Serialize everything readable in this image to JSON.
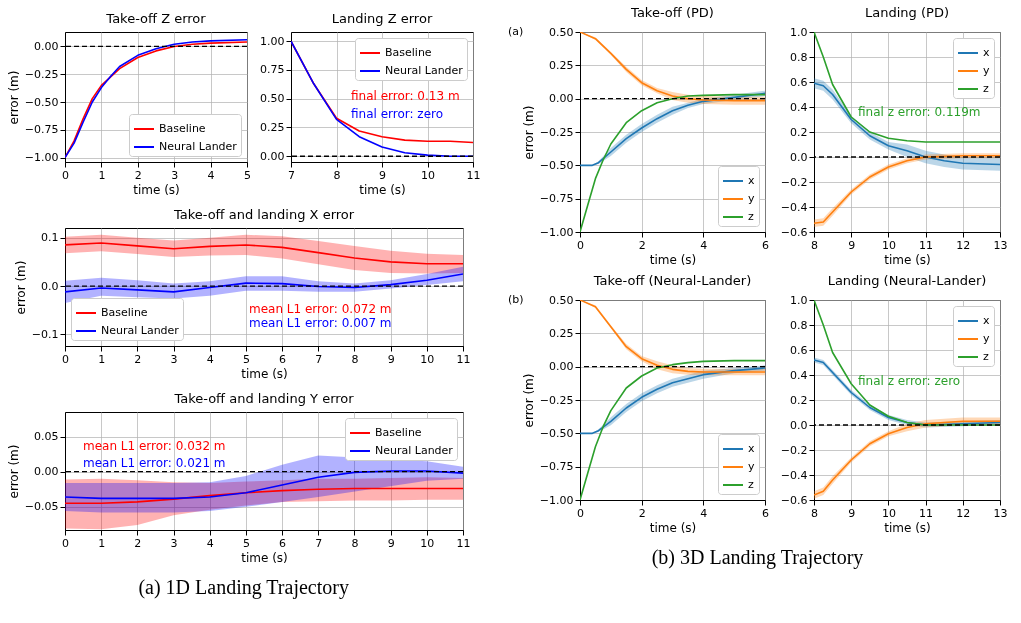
{
  "chart_data": [
    {
      "type": "line",
      "title": "Take-off Z error",
      "xlabel": "time (s)",
      "ylabel": "error (m)",
      "xlim": [
        0,
        5
      ],
      "xticks": [
        0,
        1,
        2,
        3,
        4,
        5
      ],
      "ylim": [
        -1.04,
        0.13
      ],
      "yticks": [
        {
          "value": -1,
          "label": "−1.00"
        },
        {
          "value": -0.75,
          "label": "−0.75"
        },
        {
          "value": -0.5,
          "label": "−0.50"
        },
        {
          "value": -0.25,
          "label": "−0.25"
        },
        {
          "value": 0,
          "label": "0.00"
        }
      ],
      "grid": true,
      "legend": "bottom right",
      "ref_lines": [
        {
          "axis": "y",
          "value": 0,
          "color": "#000000",
          "line_style": "dashed"
        }
      ],
      "series": [
        {
          "name": "Baseline",
          "color": "#ff0000",
          "x": [
            0,
            0.25,
            0.5,
            0.75,
            1,
            1.5,
            2,
            2.5,
            3,
            3.5,
            4,
            5
          ],
          "values": [
            -1,
            -0.85,
            -0.65,
            -0.47,
            -0.35,
            -0.2,
            -0.1,
            -0.04,
            0,
            0.02,
            0.03,
            0.04
          ]
        },
        {
          "name": "Neural Lander",
          "color": "#0000ff",
          "x": [
            0,
            0.25,
            0.5,
            0.75,
            1,
            1.25,
            1.5,
            2,
            2.5,
            3,
            3.5,
            4,
            5
          ],
          "values": [
            -1,
            -0.87,
            -0.68,
            -0.5,
            -0.37,
            -0.27,
            -0.18,
            -0.08,
            -0.02,
            0.02,
            0.04,
            0.05,
            0.06
          ]
        }
      ]
    },
    {
      "type": "line",
      "title": "Landing Z error",
      "xlabel": "time (s)",
      "xlim": [
        7,
        11
      ],
      "xticks": [
        7,
        8,
        9,
        10,
        11
      ],
      "ylim": [
        -0.05,
        1.08
      ],
      "yticks": [
        {
          "value": 0,
          "label": "0.00"
        },
        {
          "value": 0.25,
          "label": "0.25"
        },
        {
          "value": 0.5,
          "label": "0.50"
        },
        {
          "value": 0.75,
          "label": "0.75"
        },
        {
          "value": 1,
          "label": "1.00"
        }
      ],
      "grid": true,
      "legend": "top right",
      "ref_lines": [
        {
          "axis": "y",
          "value": 0,
          "color": "#000000",
          "line_style": "dashed"
        }
      ],
      "annotations": [
        "final error: 0.13 m",
        "final error: zero"
      ],
      "series": [
        {
          "name": "Baseline",
          "color": "#ff0000",
          "x": [
            7,
            7.5,
            8,
            8.5,
            9,
            9.5,
            10,
            10.5,
            11
          ],
          "values": [
            1,
            0.63,
            0.33,
            0.22,
            0.17,
            0.14,
            0.13,
            0.13,
            0.12
          ]
        },
        {
          "name": "Neural Lander",
          "color": "#0000ff",
          "x": [
            7,
            7.5,
            8,
            8.5,
            9,
            9.5,
            10,
            10.5,
            11
          ],
          "values": [
            1,
            0.63,
            0.32,
            0.17,
            0.08,
            0.03,
            0.01,
            0,
            0
          ]
        }
      ]
    },
    {
      "type": "line",
      "title": "Take-off and landing X error",
      "xlabel": "time (s)",
      "ylabel": "error (m)",
      "xlim": [
        0,
        11
      ],
      "xticks": [
        0,
        1,
        2,
        3,
        4,
        5,
        6,
        7,
        8,
        9,
        10,
        11
      ],
      "ylim": [
        -0.124,
        0.12
      ],
      "yticks": [
        {
          "value": -0.1,
          "label": "−0.1"
        },
        {
          "value": 0,
          "label": "0.0"
        },
        {
          "value": 0.1,
          "label": "0.1"
        }
      ],
      "grid": true,
      "legend": "bottom left",
      "ref_lines": [
        {
          "axis": "y",
          "value": 0,
          "color": "#000000",
          "line_style": "dashed"
        }
      ],
      "annotations": [
        "mean L1 error: 0.072 m",
        "mean L1 error: 0.007 m"
      ],
      "series": [
        {
          "name": "Baseline",
          "color": "#ff0000",
          "x": [
            0,
            1,
            2,
            3,
            4,
            5,
            6,
            7,
            8,
            9,
            10,
            11
          ],
          "values": [
            0.085,
            0.089,
            0.083,
            0.077,
            0.082,
            0.085,
            0.08,
            0.069,
            0.058,
            0.05,
            0.046,
            0.046
          ],
          "lower": [
            0.068,
            0.072,
            0.066,
            0.06,
            0.063,
            0.064,
            0.057,
            0.045,
            0.033,
            0.027,
            0.026,
            0.027
          ],
          "upper": [
            0.102,
            0.106,
            0.1,
            0.094,
            0.1,
            0.106,
            0.103,
            0.093,
            0.083,
            0.073,
            0.067,
            0.064
          ]
        },
        {
          "name": "Neural Lander",
          "color": "#0000ff",
          "x": [
            0,
            1,
            2,
            3,
            4,
            5,
            6,
            7,
            8,
            9,
            10,
            11
          ],
          "values": [
            -0.012,
            -0.004,
            -0.008,
            -0.012,
            -0.003,
            0.006,
            0.005,
            -0.001,
            -0.003,
            0.003,
            0.012,
            0.025
          ],
          "lower": [
            -0.035,
            -0.02,
            -0.023,
            -0.026,
            -0.02,
            -0.01,
            -0.01,
            -0.012,
            -0.012,
            -0.005,
            0.002,
            0.01
          ],
          "upper": [
            0.011,
            0.017,
            0.012,
            0.005,
            0.01,
            0.02,
            0.02,
            0.01,
            0.005,
            0.012,
            0.025,
            0.04
          ]
        }
      ]
    },
    {
      "type": "line",
      "title": "Take-off and landing Y error",
      "xlabel": "time (s)",
      "ylabel": "error (m)",
      "xlim": [
        0,
        11
      ],
      "xticks": [
        0,
        1,
        2,
        3,
        4,
        5,
        6,
        7,
        8,
        9,
        10,
        11
      ],
      "ylim": [
        -0.083,
        0.085
      ],
      "yticks": [
        {
          "value": -0.05,
          "label": "−0.05"
        },
        {
          "value": 0,
          "label": "0.00"
        },
        {
          "value": 0.05,
          "label": "0.05"
        }
      ],
      "grid": true,
      "legend": "top right",
      "ref_lines": [
        {
          "axis": "y",
          "value": 0,
          "color": "#000000",
          "line_style": "dashed"
        }
      ],
      "annotations": [
        "mean L1 error: 0.032 m",
        "mean L1 error: 0.021 m",
        "(a) 1D Landing Trajectory"
      ],
      "series": [
        {
          "name": "Baseline",
          "color": "#ff0000",
          "x": [
            0,
            1,
            2,
            3,
            4,
            5,
            6,
            7,
            8,
            9,
            10,
            11
          ],
          "values": [
            -0.045,
            -0.045,
            -0.043,
            -0.039,
            -0.034,
            -0.03,
            -0.027,
            -0.025,
            -0.024,
            -0.024,
            -0.024,
            -0.024
          ],
          "lower": [
            -0.081,
            -0.082,
            -0.076,
            -0.062,
            -0.054,
            -0.048,
            -0.043,
            -0.042,
            -0.041,
            -0.041,
            -0.04,
            -0.04
          ],
          "upper": [
            -0.011,
            -0.01,
            -0.012,
            -0.015,
            -0.016,
            -0.014,
            -0.012,
            -0.01,
            -0.01,
            -0.009,
            -0.008,
            -0.009
          ]
        },
        {
          "name": "Neural Lander",
          "color": "#0000ff",
          "x": [
            0,
            1,
            2,
            3,
            4,
            5,
            6,
            7,
            8,
            9,
            10,
            11
          ],
          "values": [
            -0.036,
            -0.038,
            -0.038,
            -0.038,
            -0.036,
            -0.03,
            -0.019,
            -0.008,
            -0.001,
            0.001,
            0.001,
            -0.002
          ],
          "lower": [
            -0.056,
            -0.058,
            -0.058,
            -0.058,
            -0.056,
            -0.05,
            -0.043,
            -0.036,
            null,
            null,
            -0.013,
            -0.01
          ],
          "upper": [
            -0.016,
            -0.016,
            -0.016,
            -0.016,
            -0.015,
            -0.006,
            0.01,
            0.023,
            null,
            null,
            0.015,
            0.007
          ]
        }
      ]
    },
    {
      "type": "line",
      "title": "Take-off (PD)",
      "xlabel": "time (s)",
      "ylabel": "error (m)",
      "xlim": [
        0,
        6
      ],
      "xticks": [
        0,
        2,
        4,
        6
      ],
      "ylim": [
        -1,
        0.5
      ],
      "yticks": [
        {
          "value": -1,
          "label": "−1.00"
        },
        {
          "value": -0.75,
          "label": "−0.75"
        },
        {
          "value": -0.5,
          "label": "−0.50"
        },
        {
          "value": -0.25,
          "label": "−0.25"
        },
        {
          "value": 0,
          "label": "0.00"
        },
        {
          "value": 0.25,
          "label": "0.25"
        },
        {
          "value": 0.5,
          "label": "0.50"
        }
      ],
      "grid": true,
      "legend": "bottom right",
      "ref_lines": [
        {
          "axis": "y",
          "value": 0,
          "color": "#000000",
          "line_style": "dashed"
        }
      ],
      "annotations": [
        "(a)"
      ],
      "series": [
        {
          "name": "x",
          "color": "#1f77b4",
          "x": [
            0,
            0.4,
            0.6,
            1,
            1.5,
            2,
            2.5,
            3,
            3.5,
            4,
            5,
            6
          ],
          "values": [
            -0.5,
            -0.5,
            -0.48,
            -0.4,
            -0.3,
            -0.22,
            -0.15,
            -0.09,
            -0.05,
            -0.02,
            0.01,
            0.04
          ],
          "lower": [
            -0.5,
            -0.5,
            -0.49,
            -0.43,
            -0.33,
            -0.25,
            -0.18,
            -0.12,
            -0.07,
            -0.04,
            -0.01,
            0.02
          ],
          "upper": [
            -0.5,
            -0.5,
            -0.47,
            -0.37,
            -0.27,
            -0.19,
            -0.12,
            -0.06,
            -0.03,
            0,
            0.03,
            0.06
          ]
        },
        {
          "name": "y",
          "color": "#ff7f0e",
          "x": [
            0,
            0.5,
            1,
            1.5,
            2,
            2.5,
            3,
            3.5,
            4,
            5,
            6
          ],
          "values": [
            0.5,
            0.45,
            0.34,
            0.22,
            0.12,
            0.06,
            0.02,
            0,
            -0.01,
            -0.015,
            -0.015
          ],
          "lower": [
            0.5,
            0.44,
            0.33,
            0.2,
            0.1,
            0.04,
            -0.01,
            -0.03,
            -0.04,
            -0.045,
            -0.045
          ],
          "upper": [
            0.5,
            0.46,
            0.35,
            0.24,
            0.14,
            0.08,
            0.05,
            0.03,
            0.02,
            0.015,
            0.015
          ]
        },
        {
          "name": "z",
          "color": "#2ca02c",
          "x": [
            0,
            0.25,
            0.5,
            0.75,
            1,
            1.5,
            2,
            2.5,
            3,
            3.5,
            4,
            5,
            6
          ],
          "values": [
            -1,
            -0.8,
            -0.6,
            -0.46,
            -0.34,
            -0.18,
            -0.09,
            -0.03,
            0,
            0.02,
            0.025,
            0.03,
            0.03
          ]
        }
      ]
    },
    {
      "type": "line",
      "title": "Landing (PD)",
      "xlabel": "time (s)",
      "xlim": [
        8,
        13
      ],
      "xticks": [
        8,
        9,
        10,
        11,
        12,
        13
      ],
      "ylim": [
        -0.6,
        1
      ],
      "yticks": [
        {
          "value": -0.6,
          "label": "−0.6"
        },
        {
          "value": -0.4,
          "label": "−0.4"
        },
        {
          "value": -0.2,
          "label": "−0.2"
        },
        {
          "value": 0,
          "label": "0.0"
        },
        {
          "value": 0.2,
          "label": "0.2"
        },
        {
          "value": 0.4,
          "label": "0.4"
        },
        {
          "value": 0.6,
          "label": "0.6"
        },
        {
          "value": 0.8,
          "label": "0.8"
        },
        {
          "value": 1,
          "label": "1.0"
        }
      ],
      "grid": true,
      "legend": "top right",
      "ref_lines": [
        {
          "axis": "y",
          "value": 0,
          "color": "#000000",
          "line_style": "dashed"
        }
      ],
      "annotations": [
        "final z error: 0.119m"
      ],
      "series": [
        {
          "name": "x",
          "color": "#1f77b4",
          "x": [
            8,
            8.25,
            8.5,
            9,
            9.5,
            10,
            10.5,
            11,
            11.5,
            12,
            13
          ],
          "values": [
            0.59,
            0.57,
            0.5,
            0.3,
            0.17,
            0.09,
            0.05,
            0,
            -0.03,
            -0.05,
            -0.06
          ],
          "lower": [
            0.55,
            0.53,
            0.46,
            0.27,
            0.14,
            0.06,
            0,
            -0.05,
            -0.08,
            -0.1,
            -0.11
          ],
          "upper": [
            0.63,
            0.61,
            0.54,
            0.33,
            0.2,
            0.12,
            0.1,
            0.05,
            0.02,
            0,
            0
          ]
        },
        {
          "name": "y",
          "color": "#ff7f0e",
          "x": [
            8,
            8.25,
            8.5,
            9,
            9.5,
            10,
            10.5,
            11,
            12,
            13
          ],
          "values": [
            -0.53,
            -0.52,
            -0.44,
            -0.28,
            -0.16,
            -0.08,
            -0.03,
            0,
            0.01,
            0.01
          ],
          "lower": [
            -0.56,
            -0.55,
            -0.47,
            -0.3,
            -0.18,
            -0.1,
            -0.05,
            -0.02,
            -0.01,
            -0.01
          ],
          "upper": [
            -0.5,
            -0.49,
            -0.41,
            -0.26,
            -0.14,
            -0.06,
            -0.01,
            0.02,
            0.03,
            0.03
          ]
        },
        {
          "name": "z",
          "color": "#2ca02c",
          "x": [
            8,
            8.25,
            8.5,
            9,
            9.5,
            10,
            10.5,
            11,
            12,
            13
          ],
          "values": [
            1,
            0.8,
            0.58,
            0.32,
            0.2,
            0.15,
            0.13,
            0.12,
            0.12,
            0.12
          ]
        }
      ]
    },
    {
      "type": "line",
      "title": "Take-off (Neural-Lander)",
      "xlabel": "time (s)",
      "ylabel": "error (m)",
      "xlim": [
        0,
        6
      ],
      "xticks": [
        0,
        2,
        4,
        6
      ],
      "ylim": [
        -1,
        0.5
      ],
      "yticks": [
        {
          "value": -1,
          "label": "−1.00"
        },
        {
          "value": -0.75,
          "label": "−0.75"
        },
        {
          "value": -0.5,
          "label": "−0.50"
        },
        {
          "value": -0.25,
          "label": "−0.25"
        },
        {
          "value": 0,
          "label": "0.00"
        },
        {
          "value": 0.25,
          "label": "0.25"
        },
        {
          "value": 0.5,
          "label": "0.50"
        }
      ],
      "grid": true,
      "legend": "bottom right",
      "ref_lines": [
        {
          "axis": "y",
          "value": 0,
          "color": "#000000",
          "line_style": "dashed"
        }
      ],
      "annotations": [
        "(b)"
      ],
      "series": [
        {
          "name": "x",
          "color": "#1f77b4",
          "x": [
            0,
            0.4,
            0.6,
            1,
            1.5,
            2,
            2.5,
            3,
            3.5,
            4,
            5,
            6
          ],
          "values": [
            -0.5,
            -0.5,
            -0.48,
            -0.41,
            -0.31,
            -0.23,
            -0.17,
            -0.12,
            -0.09,
            -0.06,
            -0.03,
            -0.01
          ],
          "lower": [
            -0.5,
            -0.5,
            -0.49,
            -0.44,
            -0.34,
            -0.26,
            -0.2,
            -0.15,
            -0.12,
            -0.09,
            -0.05,
            -0.03
          ],
          "upper": [
            -0.5,
            -0.5,
            -0.47,
            -0.38,
            -0.28,
            -0.2,
            -0.14,
            -0.09,
            -0.06,
            -0.03,
            -0.01,
            0.01
          ]
        },
        {
          "name": "y",
          "color": "#ff7f0e",
          "x": [
            0,
            0.5,
            1,
            1.5,
            2,
            2.5,
            3,
            3.5,
            4,
            5,
            6
          ],
          "values": [
            0.5,
            0.45,
            0.3,
            0.15,
            0.06,
            0.01,
            -0.02,
            -0.035,
            -0.04,
            -0.04,
            -0.04
          ],
          "lower": [
            0.5,
            0.44,
            0.29,
            0.13,
            0.04,
            -0.02,
            -0.05,
            -0.06,
            -0.065,
            -0.065,
            -0.065
          ],
          "upper": [
            0.5,
            0.46,
            0.31,
            0.17,
            0.08,
            0.04,
            0.01,
            -0.01,
            -0.015,
            -0.015,
            -0.015
          ]
        },
        {
          "name": "z",
          "color": "#2ca02c",
          "x": [
            0,
            0.25,
            0.5,
            0.75,
            1,
            1.5,
            2,
            2.5,
            3,
            3.5,
            4,
            5,
            6
          ],
          "values": [
            -1,
            -0.8,
            -0.6,
            -0.45,
            -0.33,
            -0.16,
            -0.07,
            -0.01,
            0.015,
            0.03,
            0.04,
            0.045,
            0.045
          ]
        }
      ]
    },
    {
      "type": "line",
      "title": "Landing (Neural-Lander)",
      "xlabel": "time (s)",
      "xlim": [
        8,
        13
      ],
      "xticks": [
        8,
        9,
        10,
        11,
        12,
        13
      ],
      "ylim": [
        -0.6,
        1
      ],
      "yticks": [
        {
          "value": -0.6,
          "label": "−0.6"
        },
        {
          "value": -0.4,
          "label": "−0.4"
        },
        {
          "value": -0.2,
          "label": "−0.2"
        },
        {
          "value": 0,
          "label": "0.0"
        },
        {
          "value": 0.2,
          "label": "0.2"
        },
        {
          "value": 0.4,
          "label": "0.4"
        },
        {
          "value": 0.6,
          "label": "0.6"
        },
        {
          "value": 0.8,
          "label": "0.8"
        },
        {
          "value": 1,
          "label": "1.0"
        }
      ],
      "grid": true,
      "legend": "top right",
      "ref_lines": [
        {
          "axis": "y",
          "value": 0,
          "color": "#000000",
          "line_style": "dashed"
        }
      ],
      "annotations": [
        "final z error: zero",
        "(b) 3D Landing Trajectory"
      ],
      "series": [
        {
          "name": "x",
          "color": "#1f77b4",
          "x": [
            8,
            8.25,
            8.5,
            9,
            9.5,
            10,
            10.5,
            11,
            12,
            13
          ],
          "values": [
            0.52,
            0.5,
            0.42,
            0.26,
            0.14,
            0.06,
            0.02,
            0,
            0.01,
            0.02
          ],
          "lower": [
            0.5,
            0.48,
            0.4,
            0.24,
            0.12,
            0.04,
            0,
            -0.02,
            -0.01,
            0
          ],
          "upper": [
            0.54,
            0.52,
            0.44,
            0.28,
            0.16,
            0.08,
            0.04,
            0.02,
            0.03,
            0.04
          ]
        },
        {
          "name": "y",
          "color": "#ff7f0e",
          "x": [
            8,
            8.25,
            8.5,
            9,
            9.5,
            10,
            10.5,
            11,
            12,
            13
          ],
          "values": [
            -0.56,
            -0.53,
            -0.44,
            -0.28,
            -0.15,
            -0.07,
            -0.02,
            0.01,
            0.03,
            0.03
          ],
          "lower": [
            -0.59,
            -0.56,
            -0.47,
            -0.3,
            -0.17,
            -0.09,
            -0.05,
            -0.02,
            0,
            0
          ],
          "upper": [
            -0.53,
            -0.5,
            -0.41,
            -0.26,
            -0.13,
            -0.05,
            0.01,
            0.04,
            0.06,
            0.06
          ]
        },
        {
          "name": "z",
          "color": "#2ca02c",
          "x": [
            8,
            8.25,
            8.5,
            9,
            9.5,
            10,
            10.5,
            11,
            12,
            13
          ],
          "values": [
            1,
            0.8,
            0.58,
            0.33,
            0.16,
            0.07,
            0.02,
            0,
            0,
            0
          ]
        }
      ]
    }
  ]
}
